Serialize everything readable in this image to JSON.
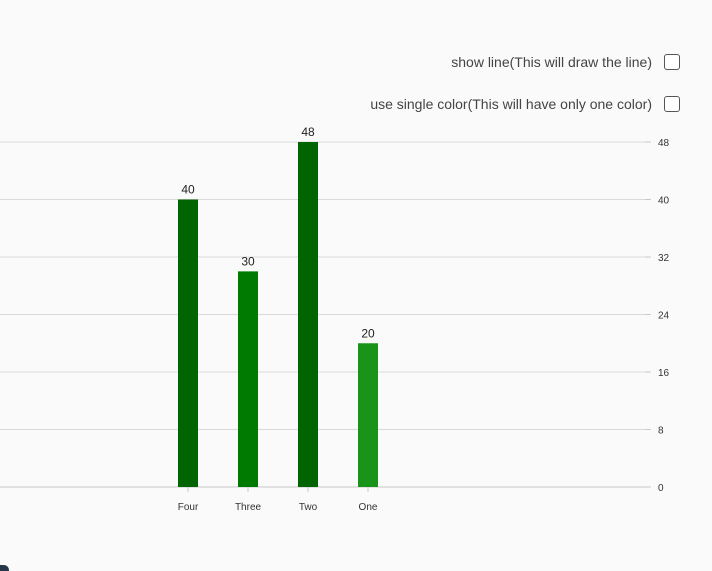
{
  "options": {
    "show_line": {
      "label": "show line(This will draw the line)",
      "checked": false
    },
    "single_color": {
      "label": "use single color(This will have only one color)",
      "checked": false
    }
  },
  "chart_data": {
    "type": "bar",
    "categories": [
      "Four",
      "Three",
      "Two",
      "One"
    ],
    "values": [
      40,
      30,
      48,
      20
    ],
    "data_labels": [
      "40",
      "30",
      "48",
      "20"
    ],
    "colors": [
      "#006400",
      "#007a00",
      "#006400",
      "#1a931a"
    ],
    "y_ticks": [
      0,
      8,
      16,
      24,
      32,
      40,
      48
    ],
    "ylim": [
      0,
      48
    ],
    "grid": true,
    "y_axis_position": "right",
    "title": "",
    "xlabel": "",
    "ylabel": ""
  }
}
